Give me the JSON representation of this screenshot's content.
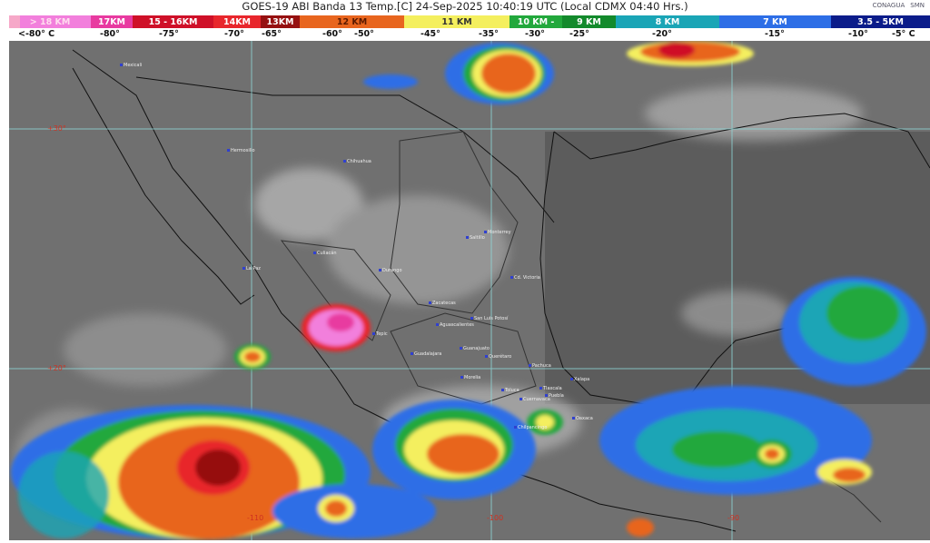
{
  "header": {
    "title": "GOES-19 ABI Banda 13 Temp.[C] 24-Sep-2025 10:40:19 UTC (Local CDMX  04:40 Hrs.)",
    "logos": [
      "CONAGUA",
      "SMN"
    ]
  },
  "legend": {
    "segments": [
      {
        "label": "> 18 KM",
        "color": "#f27fdc"
      },
      {
        "label": "17KM",
        "color": "#e83aa0"
      },
      {
        "label": "15 - 16KM",
        "color": "#cf1028"
      },
      {
        "label": "14KM",
        "color": "#e8262c"
      },
      {
        "label": "13KM",
        "color": "#961010"
      },
      {
        "label": "12 KM",
        "color": "#e8651e"
      },
      {
        "label": "11 KM",
        "color": "#f4ef5e"
      },
      {
        "label": "10 KM -",
        "color": "#22a83c"
      },
      {
        "label": "9 KM",
        "color": "#138a2c"
      },
      {
        "label": "8 KM",
        "color": "#1aa5b6"
      },
      {
        "label": "7 KM",
        "color": "#2d6ee6"
      },
      {
        "label": "3.5 - 5KM",
        "color": "#0b1c8a"
      }
    ],
    "temperatures": [
      "<-80° C",
      "-80°",
      "-75°",
      "-70°",
      "-65°",
      "-60°",
      "-50°",
      "-45°",
      "-35°",
      "-30°",
      "-25°",
      "-20°",
      "-15°",
      "-10°",
      "-5° C"
    ]
  },
  "map": {
    "latitude_labels": [
      "+30°",
      "+20°"
    ],
    "longitude_labels": [
      "-110",
      "-100",
      "-90"
    ],
    "cities": [
      "Mexicali",
      "Hermosillo",
      "Chihuahua",
      "Culiacán",
      "La Paz",
      "Durango",
      "Saltillo",
      "Monterrey",
      "Cd. Victoria",
      "Zacatecas",
      "San Luis Potosí",
      "Aguascalientes",
      "Tepic",
      "Guadalajara",
      "Guanajuato",
      "Querétaro",
      "Pachuca",
      "Morelia",
      "Toluca",
      "Tlaxcala",
      "Puebla",
      "Cuernavaca",
      "Xalapa",
      "Chilpancingo",
      "Oaxaca"
    ]
  }
}
